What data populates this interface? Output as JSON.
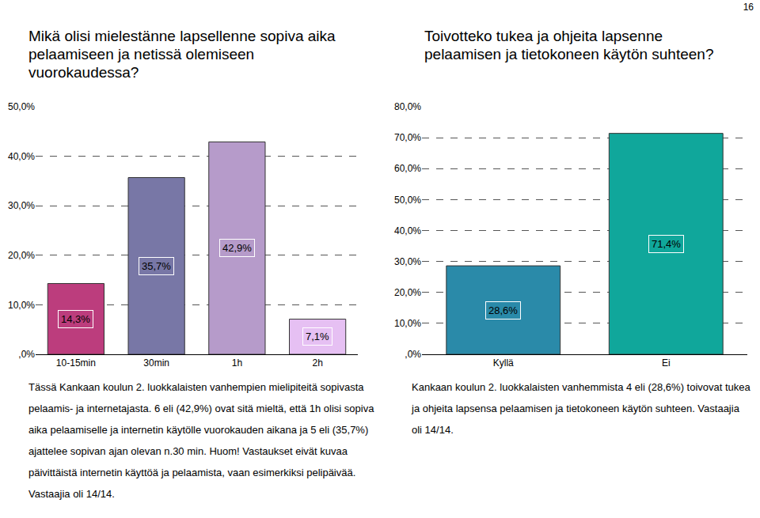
{
  "page_number": "16",
  "chart_data": [
    {
      "type": "bar",
      "title": "Mikä olisi mielestänne lapsellenne sopiva aika\npelaamiseen ja netissä olemiseen\nvuorokaudessa?",
      "caption": "Tässä Kankaan koulun 2. luokkalaisten vanhempien mielipiteitä sopivasta pelaamis- ja internetajasta. 6 eli (42,9%) ovat sitä mieltä, että 1h olisi sopiva aika pelaamiselle ja internetin käytölle vuorokauden aikana ja 5 eli (35,7%) ajattelee sopivan ajan olevan n.30 min. Huom! Vastaukset eivät kuvaa päivittäistä internetin käyttöä ja pelaamista, vaan esimerkiksi pelipäivää. Vastaajia oli 14/14.",
      "categories": [
        "10-15min",
        "30min",
        "1h",
        "2h"
      ],
      "values": [
        14.3,
        35.7,
        42.9,
        7.1
      ],
      "value_labels": [
        "14,3%",
        "35,7%",
        "42,9%",
        "7,1%"
      ],
      "colors": [
        "#bc3d7d",
        "#7877a6",
        "#b69bca",
        "#e6c0f3"
      ],
      "ylim": [
        0,
        50
      ],
      "yticks": [
        {
          "value": 0,
          "label": ",0%"
        },
        {
          "value": 10,
          "label": "10,0%"
        },
        {
          "value": 20,
          "label": "20,0%"
        },
        {
          "value": 30,
          "label": "30,0%"
        },
        {
          "value": 40,
          "label": "40,0%"
        },
        {
          "value": 50,
          "label": "50,0%"
        }
      ],
      "grid": true,
      "data_labels": true
    },
    {
      "type": "bar",
      "title": "Toivotteko tukea ja ohjeita lapsenne\npelaamisen ja tietokoneen käytön suhteen?",
      "caption": "Kankaan koulun 2. luokkalaisten vanhemmista 4 eli (28,6%) toivovat tukea ja ohjeita lapsensa pelaamisen ja tietokoneen käytön suhteen. Vastaajia oli 14/14.",
      "categories": [
        "Kyllä",
        "Ei"
      ],
      "values": [
        28.6,
        71.4
      ],
      "value_labels": [
        "28,6%",
        "71,4%"
      ],
      "colors": [
        "#2a8aa9",
        "#10a79b"
      ],
      "ylim": [
        0,
        80
      ],
      "yticks": [
        {
          "value": 0,
          "label": ",0%"
        },
        {
          "value": 10,
          "label": "10,0%"
        },
        {
          "value": 20,
          "label": "20,0%"
        },
        {
          "value": 30,
          "label": "30,0%"
        },
        {
          "value": 40,
          "label": "40,0%"
        },
        {
          "value": 50,
          "label": "50,0%"
        },
        {
          "value": 60,
          "label": "60,0%"
        },
        {
          "value": 70,
          "label": "70,0%"
        },
        {
          "value": 80,
          "label": "80,0%"
        }
      ],
      "grid": true,
      "data_labels": true
    }
  ]
}
